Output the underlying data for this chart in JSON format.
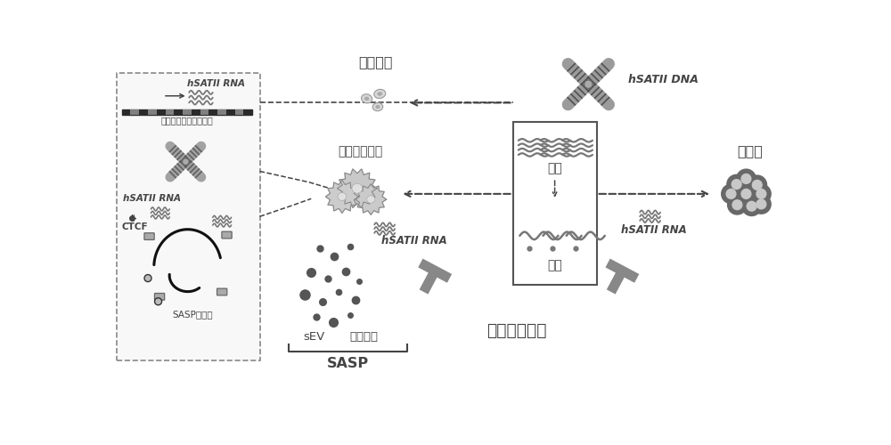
{
  "bg_color": "#ffffff",
  "gray_dark": "#444444",
  "gray_mid": "#777777",
  "gray_light": "#999999",
  "gray_lighter": "#bbbbbb",
  "gray_box": "#555555",
  "title_zhengchang": "正常细胞",
  "title_shuailao": "衰老间质细胞",
  "title_ai": "癌细胞",
  "label_hSATII_DNA": "hSATII DNA",
  "label_hSATII_RNA_box": "hSATII RNA",
  "label_guanbi": "关闭",
  "label_kaifang": "开放",
  "label_hSATII_RNA1": "hSATII RNA",
  "label_hSATII_RNA2": "hSATII RNA",
  "label_sEV": "sEV",
  "label_yanxing": "炎性蛋白",
  "label_SASP": "SASP",
  "label_shuailaoaifa": "衰老癌症疗法",
  "label_pangzhe": "旁着丝粒卫星重复序列",
  "label_hSATII_RNA_left": "hSATII RNA",
  "label_CTCF": "CTCF",
  "label_SASP_gene": "SASP基因座",
  "figw": 10.0,
  "figh": 5.0,
  "dpi": 100,
  "xlim": [
    0,
    10
  ],
  "ylim": [
    0,
    5
  ]
}
